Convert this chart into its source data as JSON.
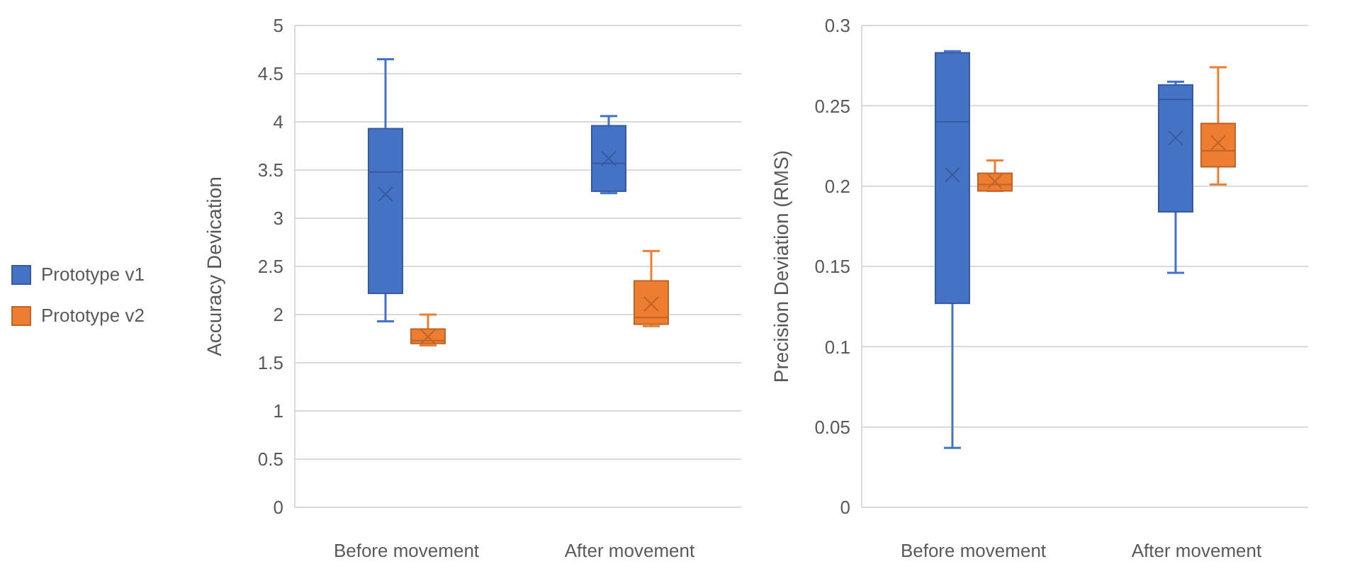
{
  "chart_data": [
    {
      "type": "box",
      "ylabel": "Accuracy Devication",
      "categories": [
        "Before movement",
        "After movement"
      ],
      "ylim": [
        0,
        5
      ],
      "yticks": [
        0,
        0.5,
        1,
        1.5,
        2,
        2.5,
        3,
        3.5,
        4,
        4.5,
        5
      ],
      "grid": "y",
      "legend": "left",
      "series": [
        {
          "name": "Prototype v1",
          "color": "#4472c4",
          "boxes": [
            {
              "low": 1.93,
              "q1": 2.22,
              "median": 3.48,
              "q3": 3.93,
              "high": 4.65,
              "mean": 3.25
            },
            {
              "low": 3.26,
              "q1": 3.28,
              "median": 3.57,
              "q3": 3.96,
              "high": 4.06,
              "mean": 3.62
            }
          ]
        },
        {
          "name": "Prototype v2",
          "color": "#ed7d31",
          "boxes": [
            {
              "low": 1.68,
              "q1": 1.7,
              "median": 1.73,
              "q3": 1.85,
              "high": 2.0,
              "mean": 1.77
            },
            {
              "low": 1.88,
              "q1": 1.9,
              "median": 1.97,
              "q3": 2.35,
              "high": 2.66,
              "mean": 2.11
            }
          ]
        }
      ]
    },
    {
      "type": "box",
      "ylabel": "Precision Deviation (RMS)",
      "categories": [
        "Before movement",
        "After movement"
      ],
      "ylim": [
        0,
        0.3
      ],
      "yticks": [
        0,
        0.05,
        0.1,
        0.15,
        0.2,
        0.25,
        0.3
      ],
      "grid": "y",
      "series": [
        {
          "color": "#4472c4",
          "boxes": [
            {
              "low": 0.037,
              "q1": 0.127,
              "median": 0.24,
              "q3": 0.283,
              "high": 0.284,
              "mean": 0.207
            },
            {
              "low": 0.146,
              "q1": 0.184,
              "median": 0.254,
              "q3": 0.263,
              "high": 0.265,
              "mean": 0.23
            }
          ]
        },
        {
          "color": "#ed7d31",
          "boxes": [
            {
              "low": 0.197,
              "q1": 0.197,
              "median": 0.201,
              "q3": 0.208,
              "high": 0.216,
              "mean": 0.203
            },
            {
              "low": 0.201,
              "q1": 0.212,
              "median": 0.222,
              "q3": 0.239,
              "high": 0.274,
              "mean": 0.227
            }
          ]
        }
      ]
    }
  ]
}
